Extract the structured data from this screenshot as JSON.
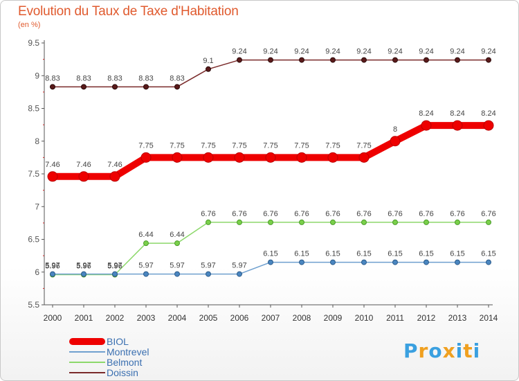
{
  "header": {
    "title": "Evolution du Taux de Taxe d'Habitation",
    "unit": "(en %)"
  },
  "logo": {
    "text": "Proxiti",
    "letters": [
      "P",
      "r",
      "o",
      "x",
      "i",
      "t",
      "i"
    ],
    "colors": [
      "#3aa0e0",
      "#f0a020",
      "#3aa0e0",
      "#f0a020",
      "#3aa0e0",
      "#f0a020",
      "#3aa0e0"
    ]
  },
  "chart_data": {
    "type": "line",
    "title": "Evolution du Taux de Taxe d'Habitation",
    "ylabel": "(en %)",
    "xlabel": "",
    "ylim": [
      5.5,
      9.5
    ],
    "yticks": [
      5.5,
      6,
      6.5,
      7,
      7.5,
      8,
      8.5,
      9,
      9.5
    ],
    "ytick_labels": [
      "5.5",
      "6",
      "6.5",
      "7",
      "7.5",
      "8",
      "8.5",
      "9",
      "9.5"
    ],
    "categories": [
      "2000",
      "2001",
      "2002",
      "2003",
      "2004",
      "2005",
      "2006",
      "2007",
      "2008",
      "2009",
      "2010",
      "2011",
      "2012",
      "2013",
      "2014"
    ],
    "series": [
      {
        "name": "Doissin",
        "color": "#7a2a2a",
        "values": [
          8.83,
          8.83,
          8.83,
          8.83,
          8.83,
          9.1,
          9.24,
          9.24,
          9.24,
          9.24,
          9.24,
          9.24,
          9.24,
          9.24,
          9.24
        ],
        "labels": [
          "8.83",
          "8.83",
          "8.83",
          "8.83",
          "8.83",
          "9.1",
          "9.24",
          "9.24",
          "9.24",
          "9.24",
          "9.24",
          "9.24",
          "9.24",
          "9.24",
          "9.24"
        ]
      },
      {
        "name": "BIOL",
        "color": "#ee0000",
        "values": [
          7.46,
          7.46,
          7.46,
          7.75,
          7.75,
          7.75,
          7.75,
          7.75,
          7.75,
          7.75,
          7.75,
          8,
          8.24,
          8.24,
          8.24
        ],
        "labels": [
          "7.46",
          "7.46",
          "7.46",
          "7.75",
          "7.75",
          "7.75",
          "7.75",
          "7.75",
          "7.75",
          "7.75",
          "7.75",
          "8",
          "8.24",
          "8.24",
          "8.24"
        ]
      },
      {
        "name": "Belmont",
        "color": "#8cd86a",
        "values": [
          5.96,
          5.96,
          5.96,
          6.44,
          6.44,
          6.76,
          6.76,
          6.76,
          6.76,
          6.76,
          6.76,
          6.76,
          6.76,
          6.76,
          6.76
        ],
        "labels": [
          "5.96",
          "5.96",
          "5.96",
          "6.44",
          "6.44",
          "6.76",
          "6.76",
          "6.76",
          "6.76",
          "6.76",
          "6.76",
          "6.76",
          "6.76",
          "6.76",
          "6.76"
        ]
      },
      {
        "name": "Montrevel",
        "color": "#6fa0cf",
        "values": [
          5.97,
          5.97,
          5.97,
          5.97,
          5.97,
          5.97,
          5.97,
          6.15,
          6.15,
          6.15,
          6.15,
          6.15,
          6.15,
          6.15,
          6.15
        ],
        "labels": [
          "5.97",
          "5.97",
          "5.97",
          "5.97",
          "5.97",
          "5.97",
          "5.97",
          "6.15",
          "6.15",
          "6.15",
          "6.15",
          "6.15",
          "6.15",
          "6.15",
          "6.15"
        ]
      }
    ],
    "legend": {
      "position": "bottom-left",
      "items": [
        {
          "name": "BIOL",
          "color": "#ee0000"
        },
        {
          "name": "Montrevel",
          "color": "#6fa0cf"
        },
        {
          "name": "Belmont",
          "color": "#8cd86a"
        },
        {
          "name": "Doissin",
          "color": "#7a2a2a"
        }
      ]
    }
  }
}
